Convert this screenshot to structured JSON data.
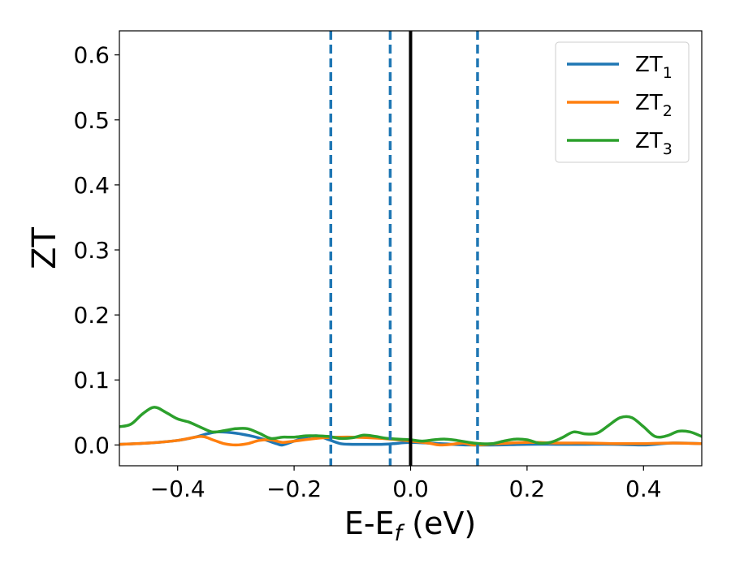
{
  "chart_data": {
    "type": "line",
    "xlabel": "E-E_f (eV)",
    "ylabel": "ZT",
    "xlim": [
      -0.5,
      0.5
    ],
    "ylim": [
      -0.032,
      0.637
    ],
    "x_ticks": [
      -0.4,
      -0.2,
      0.0,
      0.2,
      0.4
    ],
    "x_tick_labels": [
      "−0.4",
      "−0.2",
      "0.0",
      "0.2",
      "0.4"
    ],
    "y_ticks": [
      0.0,
      0.1,
      0.2,
      0.3,
      0.4,
      0.5,
      0.6
    ],
    "y_tick_labels": [
      "0.0",
      "0.1",
      "0.2",
      "0.3",
      "0.4",
      "0.5",
      "0.6"
    ],
    "grid": false,
    "legend_position": "top-right",
    "fermi_line_x": 0.0,
    "dashed_lines_x": [
      -0.137,
      -0.035,
      0.115
    ],
    "colors": {
      "ZT1": "#1f77b4",
      "ZT2": "#ff7f0e",
      "ZT3": "#2ca02c",
      "fermi": "#000000",
      "dashed": "#1f77b4"
    },
    "series": [
      {
        "name": "ZT1",
        "x": [
          -0.5,
          -0.45,
          -0.4,
          -0.37,
          -0.35,
          -0.33,
          -0.3,
          -0.27,
          -0.25,
          -0.23,
          -0.22,
          -0.2,
          -0.18,
          -0.16,
          -0.14,
          -0.12,
          -0.1,
          -0.08,
          -0.05,
          -0.03,
          0.0,
          0.05,
          0.1,
          0.15,
          0.2,
          0.25,
          0.3,
          0.35,
          0.4,
          0.45,
          0.5
        ],
        "values": [
          0.001,
          0.003,
          0.007,
          0.012,
          0.017,
          0.02,
          0.018,
          0.013,
          0.008,
          0.002,
          0.0,
          0.006,
          0.012,
          0.014,
          0.008,
          0.002,
          0.001,
          0.001,
          0.001,
          0.002,
          0.004,
          0.002,
          0.0,
          0.0,
          0.001,
          0.001,
          0.001,
          0.001,
          0.0,
          0.003,
          0.002
        ]
      },
      {
        "name": "ZT2",
        "x": [
          -0.5,
          -0.45,
          -0.4,
          -0.36,
          -0.34,
          -0.32,
          -0.3,
          -0.28,
          -0.26,
          -0.24,
          -0.22,
          -0.2,
          -0.15,
          -0.1,
          -0.05,
          0.0,
          0.03,
          0.05,
          0.07,
          0.09,
          0.11,
          0.15,
          0.2,
          0.25,
          0.3,
          0.35,
          0.4,
          0.45,
          0.5
        ],
        "values": [
          0.001,
          0.003,
          0.007,
          0.013,
          0.008,
          0.002,
          0.0,
          0.002,
          0.007,
          0.008,
          0.004,
          0.006,
          0.011,
          0.012,
          0.01,
          0.006,
          0.003,
          0.0,
          0.001,
          0.003,
          0.0,
          0.002,
          0.004,
          0.003,
          0.003,
          0.002,
          0.002,
          0.003,
          0.002
        ]
      },
      {
        "name": "ZT3",
        "x": [
          -0.5,
          -0.48,
          -0.46,
          -0.44,
          -0.42,
          -0.4,
          -0.38,
          -0.36,
          -0.34,
          -0.32,
          -0.3,
          -0.28,
          -0.26,
          -0.24,
          -0.22,
          -0.2,
          -0.18,
          -0.16,
          -0.14,
          -0.12,
          -0.1,
          -0.08,
          -0.06,
          -0.04,
          -0.02,
          0.0,
          0.02,
          0.04,
          0.06,
          0.08,
          0.1,
          0.12,
          0.14,
          0.16,
          0.18,
          0.2,
          0.22,
          0.24,
          0.26,
          0.28,
          0.3,
          0.32,
          0.34,
          0.36,
          0.38,
          0.4,
          0.42,
          0.44,
          0.46,
          0.48,
          0.5
        ],
        "values": [
          0.028,
          0.032,
          0.048,
          0.058,
          0.05,
          0.04,
          0.035,
          0.027,
          0.02,
          0.022,
          0.025,
          0.025,
          0.018,
          0.01,
          0.012,
          0.012,
          0.014,
          0.014,
          0.013,
          0.01,
          0.011,
          0.015,
          0.013,
          0.01,
          0.009,
          0.008,
          0.006,
          0.008,
          0.009,
          0.007,
          0.004,
          0.002,
          0.002,
          0.006,
          0.009,
          0.008,
          0.003,
          0.004,
          0.011,
          0.02,
          0.017,
          0.018,
          0.03,
          0.042,
          0.042,
          0.028,
          0.013,
          0.014,
          0.021,
          0.02,
          0.013
        ]
      }
    ]
  }
}
